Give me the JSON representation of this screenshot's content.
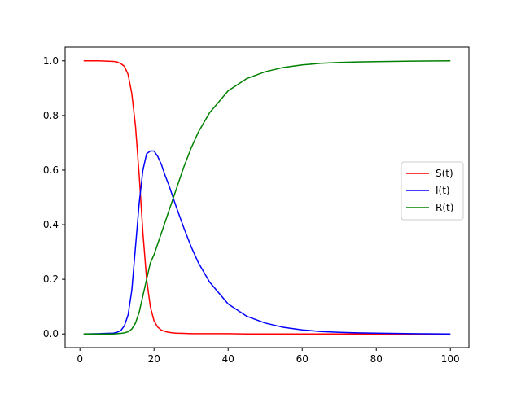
{
  "chart_data": {
    "type": "line",
    "title": "",
    "xlabel": "",
    "ylabel": "",
    "xlim": [
      -4,
      105
    ],
    "ylim": [
      -0.05,
      1.05
    ],
    "xticks": [
      {
        "value": 0,
        "label": "0"
      },
      {
        "value": 20,
        "label": "20"
      },
      {
        "value": 40,
        "label": "40"
      },
      {
        "value": 60,
        "label": "60"
      },
      {
        "value": 80,
        "label": "80"
      },
      {
        "value": 100,
        "label": "100"
      }
    ],
    "yticks": [
      {
        "value": 0.0,
        "label": "0.0"
      },
      {
        "value": 0.2,
        "label": "0.2"
      },
      {
        "value": 0.4,
        "label": "0.4"
      },
      {
        "value": 0.6,
        "label": "0.6"
      },
      {
        "value": 0.8,
        "label": "0.8"
      },
      {
        "value": 1.0,
        "label": "1.0"
      }
    ],
    "grid": false,
    "legend": {
      "position": "center-right"
    },
    "x": [
      1,
      5,
      9,
      10,
      11,
      12,
      13,
      14,
      15,
      16,
      17,
      18,
      19,
      20,
      21,
      22,
      23,
      24,
      25,
      26,
      28,
      30,
      32,
      35,
      40,
      45,
      50,
      55,
      60,
      65,
      70,
      75,
      80,
      90,
      100
    ],
    "series": [
      {
        "name": "S(t)",
        "color": "#ff0000",
        "values": [
          1.0,
          1.0,
          0.998,
          0.996,
          0.99,
          0.98,
          0.95,
          0.88,
          0.76,
          0.58,
          0.37,
          0.2,
          0.1,
          0.048,
          0.025,
          0.014,
          0.009,
          0.006,
          0.004,
          0.003,
          0.002,
          0.001,
          0.001,
          0.001,
          0.001,
          0.0,
          0.0,
          0.0,
          0.0,
          0.0,
          0.0,
          0.0,
          0.0,
          0.0,
          0.0
        ]
      },
      {
        "name": "I(t)",
        "color": "#0000ff",
        "values": [
          0.0,
          0.001,
          0.003,
          0.006,
          0.012,
          0.03,
          0.07,
          0.16,
          0.32,
          0.48,
          0.6,
          0.66,
          0.67,
          0.67,
          0.65,
          0.62,
          0.58,
          0.545,
          0.505,
          0.465,
          0.39,
          0.32,
          0.26,
          0.19,
          0.11,
          0.065,
          0.04,
          0.024,
          0.015,
          0.009,
          0.006,
          0.004,
          0.003,
          0.001,
          0.0
        ]
      },
      {
        "name": "R(t)",
        "color": "#008000",
        "values": [
          0.0,
          0.0,
          0.0,
          0.001,
          0.002,
          0.004,
          0.008,
          0.018,
          0.04,
          0.08,
          0.14,
          0.2,
          0.26,
          0.29,
          0.33,
          0.37,
          0.41,
          0.45,
          0.49,
          0.53,
          0.61,
          0.68,
          0.74,
          0.81,
          0.89,
          0.935,
          0.96,
          0.976,
          0.985,
          0.991,
          0.994,
          0.996,
          0.997,
          0.999,
          1.0
        ]
      }
    ]
  }
}
